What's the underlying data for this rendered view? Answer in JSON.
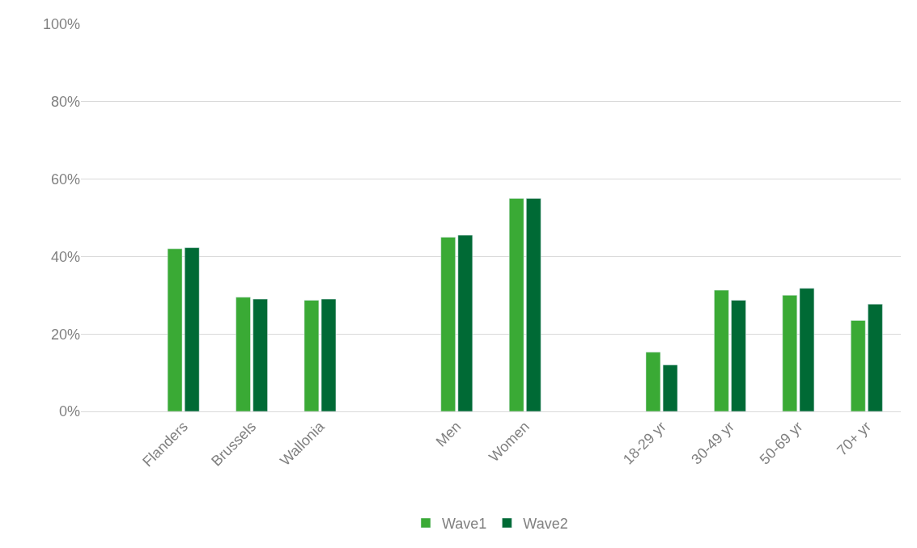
{
  "chart_data": {
    "type": "bar",
    "categories": [
      null,
      "Flanders",
      "Brussels",
      "Wallonia",
      null,
      "Men",
      "Women",
      null,
      "18-29 yr",
      "30-49 yr",
      "50-69 yr",
      "70+ yr"
    ],
    "series": [
      {
        "name": "Wave1",
        "color": "#3aaa35",
        "values": [
          null,
          42,
          29.5,
          28.7,
          null,
          45,
          55,
          null,
          15.3,
          31.3,
          30,
          23.5
        ]
      },
      {
        "name": "Wave2",
        "color": "#006a35",
        "values": [
          null,
          42.3,
          29,
          29,
          null,
          45.5,
          55,
          null,
          12,
          28.7,
          31.8,
          27.7
        ]
      }
    ],
    "ylim": [
      0,
      100
    ],
    "yticks": [
      {
        "value": 0,
        "label": "0%"
      },
      {
        "value": 20,
        "label": "20%"
      },
      {
        "value": 40,
        "label": "40%"
      },
      {
        "value": 60,
        "label": "60%"
      },
      {
        "value": 80,
        "label": "80%"
      },
      {
        "value": 100,
        "label": "100%"
      }
    ],
    "grid": "y",
    "legend": "bottom"
  }
}
